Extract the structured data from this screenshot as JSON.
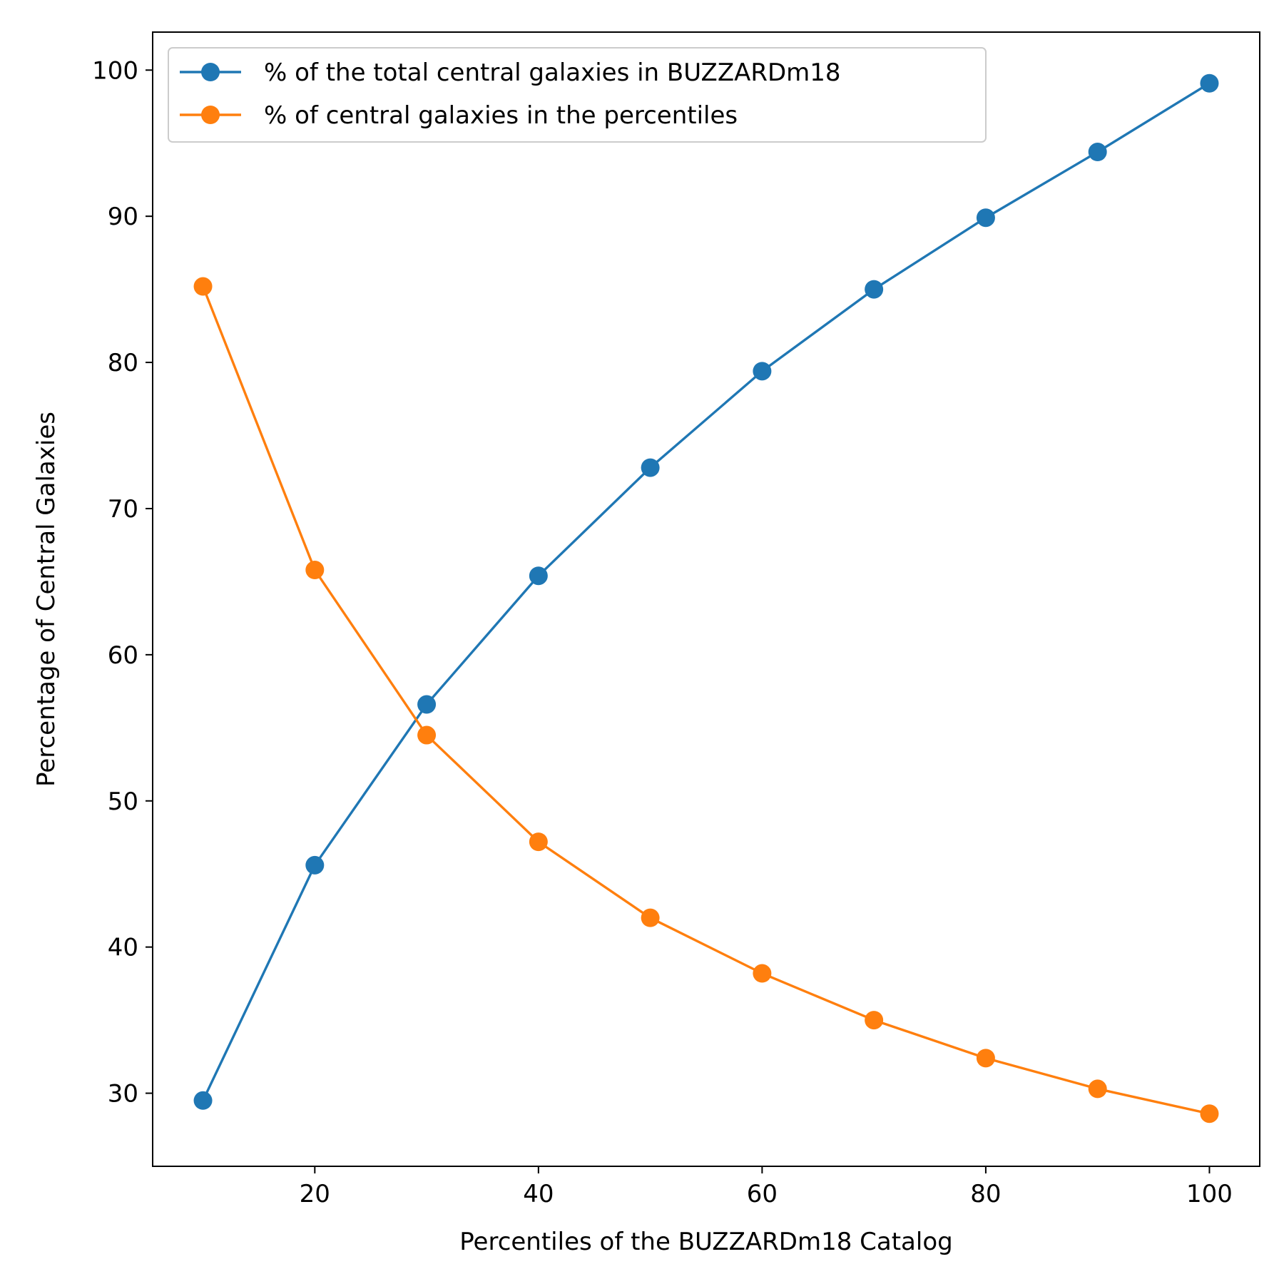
{
  "chart_data": {
    "type": "line",
    "title": "",
    "xlabel": "Percentiles of the BUZZARDm18 Catalog",
    "ylabel": "Percentage of Central Galaxies",
    "x": [
      10,
      20,
      30,
      40,
      50,
      60,
      70,
      80,
      90,
      100
    ],
    "xlim": [
      5.5,
      104.5
    ],
    "ylim": [
      25.0,
      102.6
    ],
    "xticks": [
      20,
      40,
      60,
      80,
      100
    ],
    "yticks": [
      30,
      40,
      50,
      60,
      70,
      80,
      90,
      100
    ],
    "grid": false,
    "legend_position": "upper-left",
    "series": [
      {
        "name": "% of the total central galaxies in BUZZARDm18",
        "color": "#1f77b4",
        "marker": "circle",
        "values": [
          29.5,
          45.6,
          56.6,
          65.4,
          72.8,
          79.4,
          85.0,
          89.9,
          94.4,
          99.1
        ]
      },
      {
        "name": "% of central galaxies in the percentiles",
        "color": "#ff7f0e",
        "marker": "circle",
        "values": [
          85.2,
          65.8,
          54.5,
          47.2,
          42.0,
          38.2,
          35.0,
          32.4,
          30.3,
          28.6
        ]
      }
    ]
  }
}
